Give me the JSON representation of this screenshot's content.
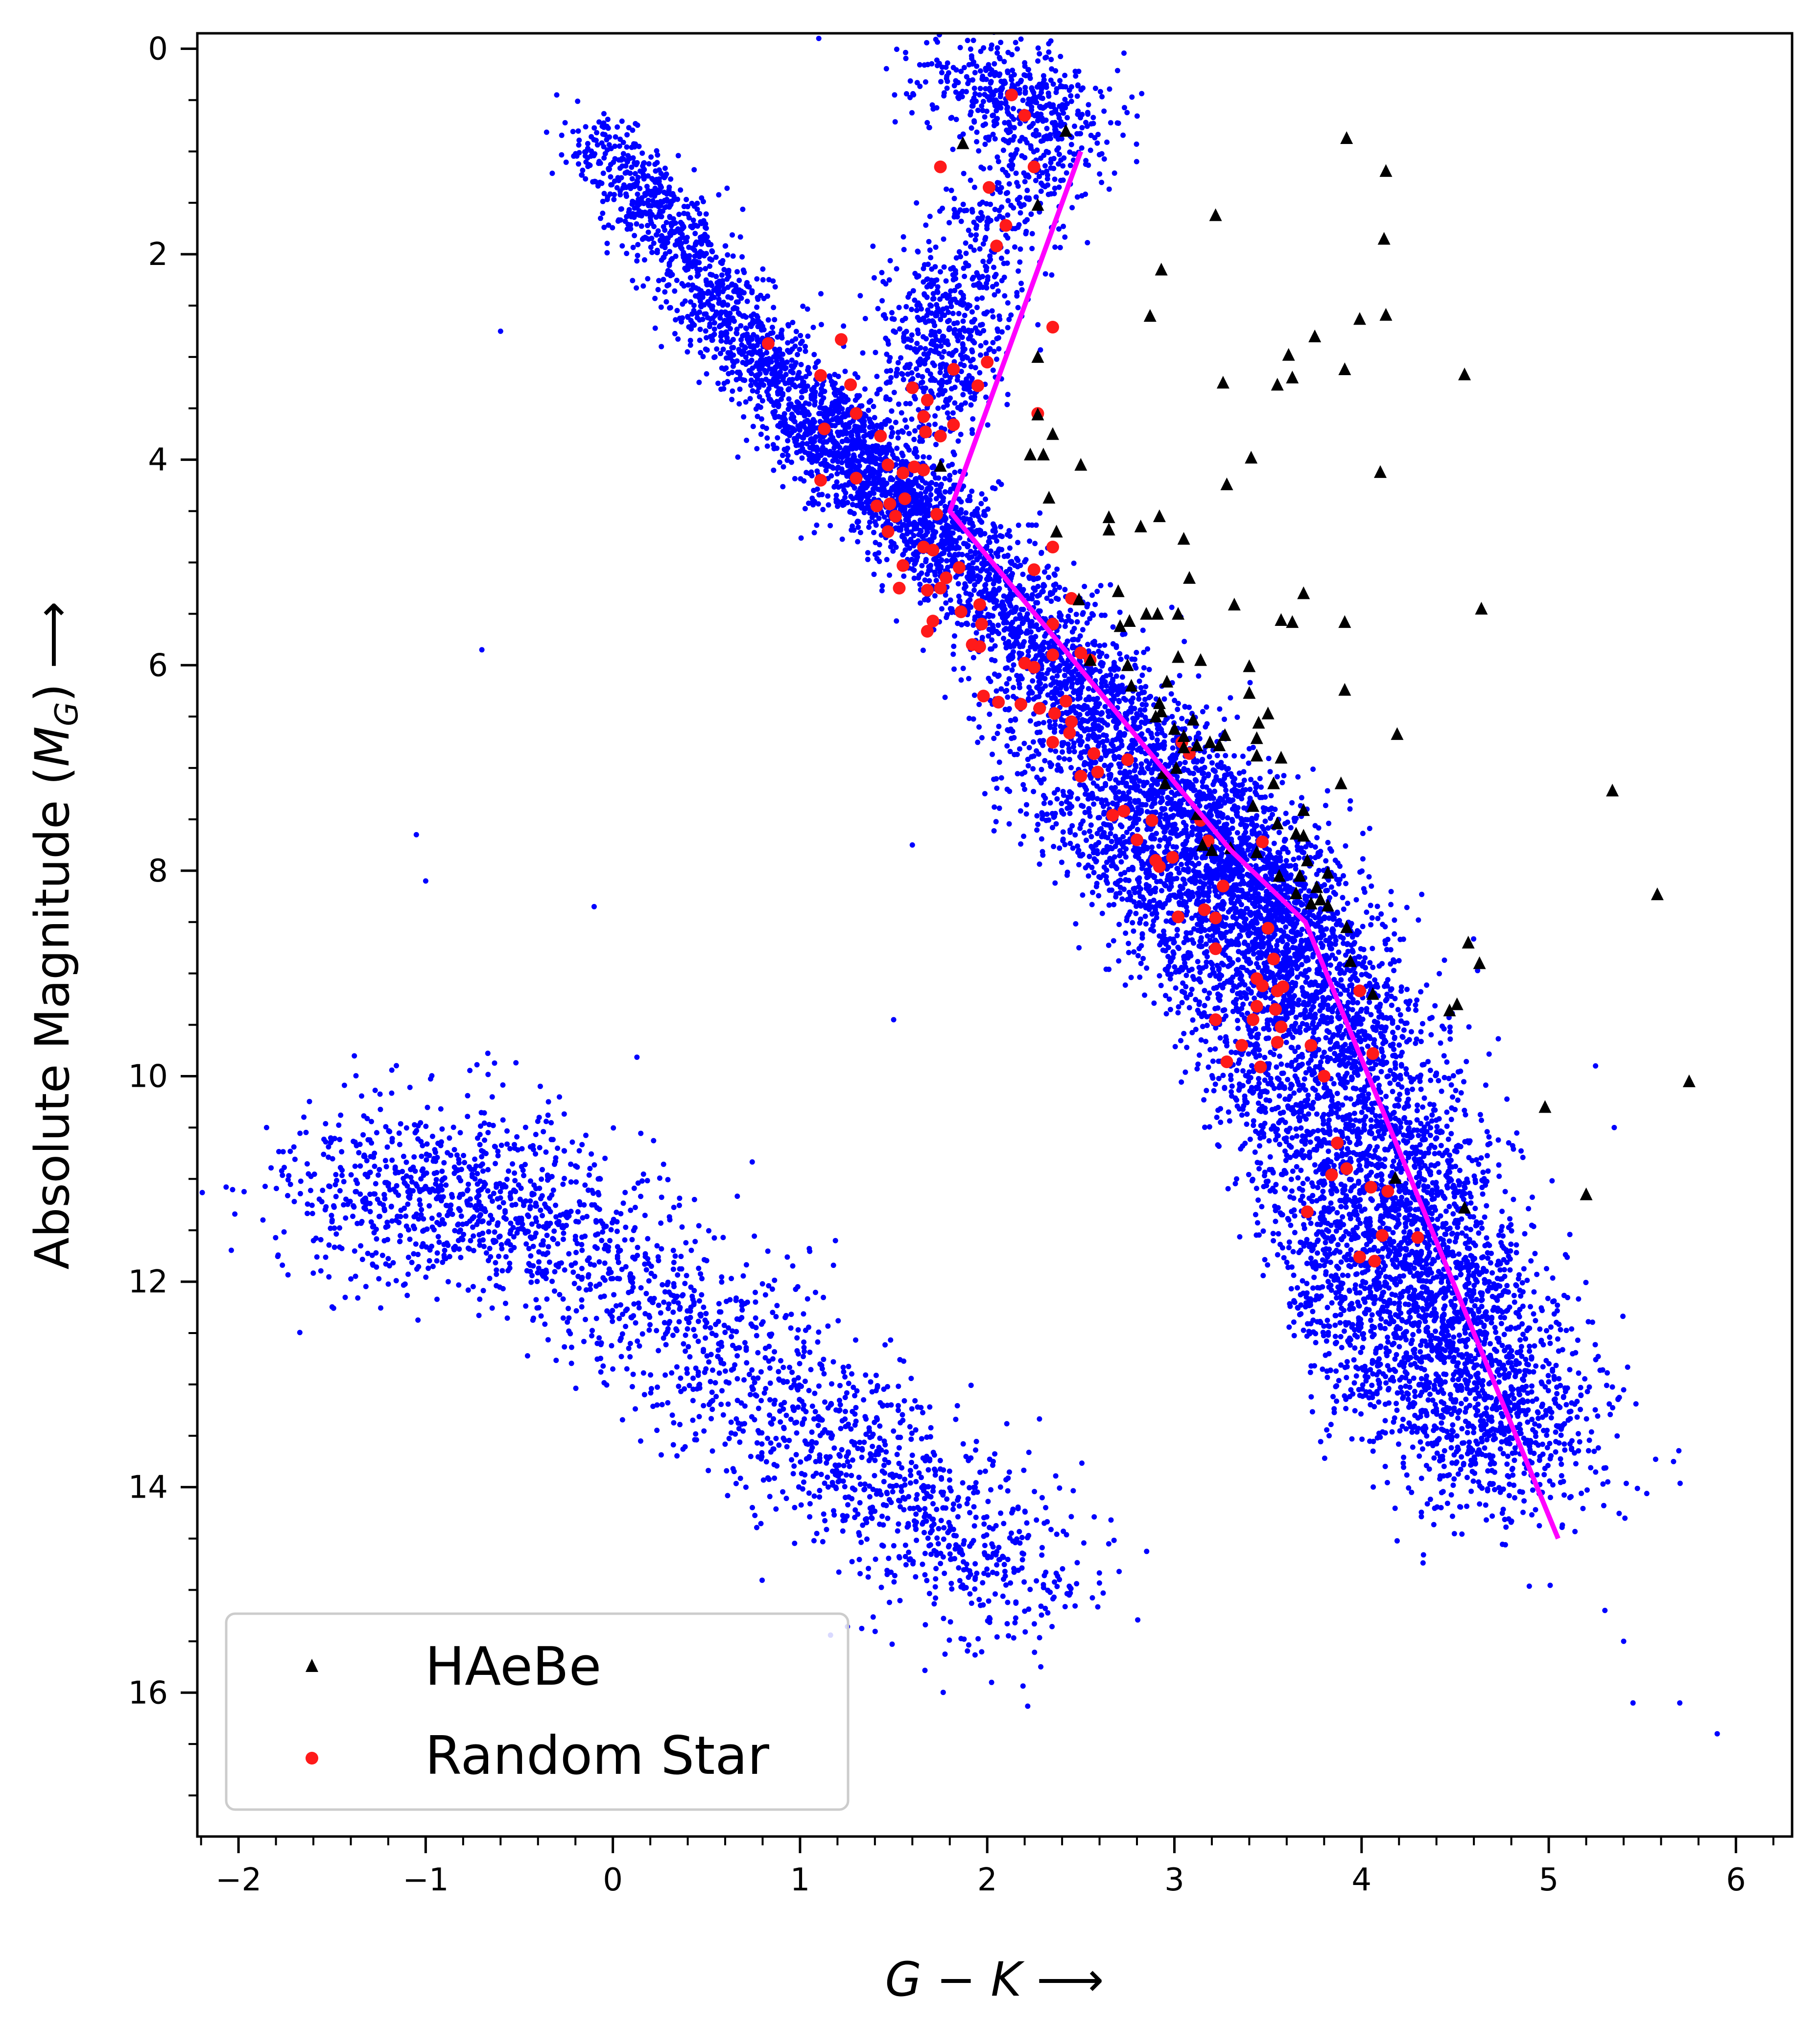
{
  "chart_data": {
    "type": "scatter",
    "title": "",
    "xlabel": "G − K ⟶",
    "xlabel_main": "G",
    "xlabel_minus": " − ",
    "xlabel_k": "K",
    "xlabel_arrow": " ⟶",
    "ylabel_pre": "Absolute Magnitude (",
    "ylabel_m": "M",
    "ylabel_sub": "G",
    "ylabel_post": ") ⟶",
    "ylabel": "Absolute Magnitude (M_G) ⟶",
    "xlim": [
      -2.22,
      6.3
    ],
    "ylim": [
      17.4,
      -0.15
    ],
    "y_inverted": true,
    "grid": false,
    "legend_position": "lower-left",
    "x_ticks": [
      -2,
      -1,
      0,
      1,
      2,
      3,
      4,
      5,
      6
    ],
    "x_tick_labels": [
      "−2",
      "−1",
      "0",
      "1",
      "2",
      "3",
      "4",
      "5",
      "6"
    ],
    "y_ticks": [
      0,
      2,
      4,
      6,
      8,
      10,
      12,
      14,
      16
    ],
    "y_tick_labels": [
      "0",
      "2",
      "4",
      "6",
      "8",
      "10",
      "12",
      "14",
      "16"
    ],
    "colors": {
      "background_stars": "#0000ff",
      "haebe": "#000000",
      "random_star": "#ff1a1a",
      "boundary_line": "#ff00ff"
    },
    "legend": [
      {
        "label": "HAeBe",
        "marker": "triangle",
        "color": "#000000"
      },
      {
        "label": "Random Star",
        "marker": "circle",
        "color": "#ff1a1a"
      }
    ],
    "boundary_line": {
      "name": "",
      "points": [
        [
          2.5,
          1.0
        ],
        [
          1.8,
          4.5
        ],
        [
          3.3,
          7.8
        ],
        [
          3.7,
          8.5
        ],
        [
          5.05,
          14.5
        ]
      ]
    },
    "background_population": {
      "description_key": "field stars (dense blue scatter)",
      "main_sequence_ridge": [
        [
          -0.1,
          0.8
        ],
        [
          1.0,
          3.5
        ],
        [
          1.8,
          4.8
        ],
        [
          3.0,
          7.2
        ],
        [
          3.7,
          8.8
        ],
        [
          4.3,
          11.5
        ],
        [
          4.8,
          13.8
        ]
      ],
      "red_clump": [
        [
          1.8,
          0.3
        ],
        [
          2.4,
          0.6
        ],
        [
          1.8,
          2.5
        ],
        [
          1.7,
          3.5
        ]
      ],
      "white_dwarf_sequence": [
        [
          -1.5,
          11.0
        ],
        [
          -0.4,
          11.3
        ],
        [
          1.0,
          13.3
        ],
        [
          2.2,
          15.0
        ]
      ],
      "outliers": [
        [
          -0.3,
          0.45
        ],
        [
          -0.6,
          2.75
        ],
        [
          -0.7,
          5.85
        ],
        [
          -1.05,
          7.65
        ],
        [
          -1.0,
          8.1
        ],
        [
          -0.1,
          8.35
        ],
        [
          1.6,
          7.75
        ],
        [
          1.5,
          9.45
        ],
        [
          5.25,
          9.9
        ],
        [
          5.35,
          10.5
        ],
        [
          5.3,
          15.2
        ],
        [
          5.4,
          15.5
        ],
        [
          5.45,
          16.1
        ],
        [
          5.7,
          16.1
        ],
        [
          5.9,
          16.4
        ],
        [
          1.1,
          -0.1
        ],
        [
          -1.85,
          10.5
        ]
      ]
    },
    "series": [
      {
        "name": "HAeBe",
        "marker": "triangle",
        "points": [
          [
            2.42,
            0.8
          ],
          [
            1.87,
            0.92
          ],
          [
            3.92,
            0.87
          ],
          [
            4.13,
            1.19
          ],
          [
            2.27,
            1.52
          ],
          [
            3.22,
            1.62
          ],
          [
            4.12,
            1.85
          ],
          [
            2.93,
            2.15
          ],
          [
            2.87,
            2.6
          ],
          [
            4.13,
            2.59
          ],
          [
            3.99,
            2.63
          ],
          [
            3.75,
            2.8
          ],
          [
            2.27,
            3.0
          ],
          [
            3.61,
            2.98
          ],
          [
            3.91,
            3.12
          ],
          [
            4.55,
            3.17
          ],
          [
            3.63,
            3.2
          ],
          [
            3.26,
            3.25
          ],
          [
            3.55,
            3.27
          ],
          [
            2.27,
            3.56
          ],
          [
            2.35,
            3.75
          ],
          [
            1.75,
            4.06
          ],
          [
            2.23,
            3.95
          ],
          [
            2.3,
            3.95
          ],
          [
            2.5,
            4.05
          ],
          [
            3.41,
            3.98
          ],
          [
            4.1,
            4.12
          ],
          [
            3.28,
            4.24
          ],
          [
            2.33,
            4.37
          ],
          [
            2.37,
            4.7
          ],
          [
            2.65,
            4.56
          ],
          [
            2.82,
            4.65
          ],
          [
            2.92,
            4.55
          ],
          [
            3.05,
            4.77
          ],
          [
            2.65,
            4.68
          ],
          [
            3.08,
            5.15
          ],
          [
            2.7,
            5.28
          ],
          [
            2.49,
            5.36
          ],
          [
            2.85,
            5.5
          ],
          [
            2.91,
            5.5
          ],
          [
            2.71,
            5.62
          ],
          [
            2.76,
            5.57
          ],
          [
            3.02,
            5.5
          ],
          [
            3.32,
            5.41
          ],
          [
            3.57,
            5.56
          ],
          [
            3.63,
            5.58
          ],
          [
            3.69,
            5.3
          ],
          [
            3.91,
            5.58
          ],
          [
            4.64,
            5.45
          ],
          [
            2.55,
            5.95
          ],
          [
            2.75,
            6.0
          ],
          [
            2.96,
            6.16
          ],
          [
            3.02,
            5.92
          ],
          [
            3.14,
            5.95
          ],
          [
            3.4,
            6.01
          ],
          [
            2.77,
            6.2
          ],
          [
            2.92,
            6.37
          ],
          [
            2.93,
            6.45
          ],
          [
            2.9,
            6.5
          ],
          [
            3.0,
            6.62
          ],
          [
            3.05,
            6.69
          ],
          [
            3.1,
            6.53
          ],
          [
            3.4,
            6.27
          ],
          [
            3.5,
            6.47
          ],
          [
            3.91,
            6.24
          ],
          [
            3.05,
            6.8
          ],
          [
            3.12,
            6.78
          ],
          [
            3.19,
            6.75
          ],
          [
            3.24,
            6.78
          ],
          [
            3.27,
            6.68
          ],
          [
            3.45,
            6.56
          ],
          [
            3.44,
            6.71
          ],
          [
            4.19,
            6.67
          ],
          [
            2.94,
            7.05
          ],
          [
            3.01,
            7.0
          ],
          [
            3.44,
            6.88
          ],
          [
            3.57,
            6.9
          ],
          [
            3.53,
            7.15
          ],
          [
            3.89,
            7.15
          ],
          [
            2.95,
            7.15
          ],
          [
            3.42,
            7.37
          ],
          [
            3.12,
            7.45
          ],
          [
            3.69,
            7.41
          ],
          [
            3.55,
            7.54
          ],
          [
            3.65,
            7.64
          ],
          [
            3.15,
            7.75
          ],
          [
            3.2,
            7.8
          ],
          [
            3.3,
            7.78
          ],
          [
            3.44,
            7.82
          ],
          [
            3.69,
            7.66
          ],
          [
            3.71,
            7.9
          ],
          [
            3.56,
            8.05
          ],
          [
            3.67,
            8.05
          ],
          [
            3.76,
            8.16
          ],
          [
            3.82,
            8.02
          ],
          [
            3.65,
            8.22
          ],
          [
            3.73,
            8.32
          ],
          [
            3.78,
            8.28
          ],
          [
            3.82,
            8.34
          ],
          [
            3.92,
            8.55
          ],
          [
            3.94,
            8.88
          ],
          [
            4.06,
            9.2
          ],
          [
            4.57,
            8.7
          ],
          [
            4.63,
            8.9
          ],
          [
            4.47,
            9.36
          ],
          [
            4.51,
            9.3
          ],
          [
            5.34,
            7.22
          ],
          [
            5.58,
            8.23
          ],
          [
            5.75,
            10.05
          ],
          [
            4.98,
            10.3
          ],
          [
            5.2,
            11.15
          ],
          [
            4.18,
            10.99
          ],
          [
            4.55,
            11.28
          ]
        ]
      },
      {
        "name": "Random Star",
        "marker": "circle",
        "points": [
          [
            2.13,
            0.45
          ],
          [
            2.2,
            0.65
          ],
          [
            1.75,
            1.15
          ],
          [
            2.25,
            1.15
          ],
          [
            2.01,
            1.35
          ],
          [
            2.1,
            1.72
          ],
          [
            2.05,
            1.92
          ],
          [
            0.83,
            2.87
          ],
          [
            1.22,
            2.83
          ],
          [
            2.35,
            2.71
          ],
          [
            1.11,
            3.18
          ],
          [
            1.27,
            3.27
          ],
          [
            1.6,
            3.3
          ],
          [
            1.68,
            3.42
          ],
          [
            1.82,
            3.12
          ],
          [
            2.0,
            3.05
          ],
          [
            1.95,
            3.28
          ],
          [
            1.3,
            3.55
          ],
          [
            1.66,
            3.58
          ],
          [
            1.13,
            3.7
          ],
          [
            1.43,
            3.77
          ],
          [
            1.67,
            3.73
          ],
          [
            1.75,
            3.77
          ],
          [
            1.82,
            3.66
          ],
          [
            2.27,
            3.55
          ],
          [
            1.11,
            4.2
          ],
          [
            1.3,
            4.18
          ],
          [
            1.47,
            4.05
          ],
          [
            1.55,
            4.13
          ],
          [
            1.61,
            4.07
          ],
          [
            1.66,
            4.1
          ],
          [
            1.41,
            4.45
          ],
          [
            1.48,
            4.43
          ],
          [
            1.56,
            4.38
          ],
          [
            1.51,
            4.55
          ],
          [
            1.47,
            4.7
          ],
          [
            1.73,
            4.53
          ],
          [
            2.35,
            4.85
          ],
          [
            1.55,
            5.03
          ],
          [
            1.66,
            4.85
          ],
          [
            1.71,
            4.88
          ],
          [
            1.85,
            5.05
          ],
          [
            1.78,
            5.15
          ],
          [
            1.53,
            5.25
          ],
          [
            2.25,
            5.07
          ],
          [
            1.68,
            5.27
          ],
          [
            1.75,
            5.25
          ],
          [
            2.45,
            5.35
          ],
          [
            1.96,
            5.41
          ],
          [
            1.71,
            5.57
          ],
          [
            1.86,
            5.48
          ],
          [
            1.68,
            5.67
          ],
          [
            1.97,
            5.6
          ],
          [
            1.92,
            5.8
          ],
          [
            2.35,
            5.6
          ],
          [
            2.5,
            5.88
          ],
          [
            2.55,
            5.95
          ],
          [
            2.35,
            5.9
          ],
          [
            1.96,
            5.82
          ],
          [
            2.2,
            5.98
          ],
          [
            2.25,
            6.02
          ],
          [
            1.98,
            6.3
          ],
          [
            2.06,
            6.36
          ],
          [
            2.18,
            6.38
          ],
          [
            2.28,
            6.42
          ],
          [
            2.36,
            6.47
          ],
          [
            2.42,
            6.35
          ],
          [
            2.45,
            6.55
          ],
          [
            2.35,
            6.75
          ],
          [
            2.44,
            6.66
          ],
          [
            2.57,
            6.86
          ],
          [
            2.75,
            6.92
          ],
          [
            2.5,
            7.08
          ],
          [
            2.59,
            7.04
          ],
          [
            3.04,
            6.75
          ],
          [
            3.08,
            6.86
          ],
          [
            2.67,
            7.46
          ],
          [
            2.73,
            7.42
          ],
          [
            2.88,
            7.51
          ],
          [
            3.14,
            7.51
          ],
          [
            2.8,
            7.7
          ],
          [
            2.9,
            7.9
          ],
          [
            2.92,
            7.96
          ],
          [
            2.99,
            7.87
          ],
          [
            3.18,
            7.71
          ],
          [
            3.47,
            7.72
          ],
          [
            3.02,
            8.45
          ],
          [
            3.16,
            8.38
          ],
          [
            3.22,
            8.46
          ],
          [
            3.26,
            8.15
          ],
          [
            3.5,
            8.56
          ],
          [
            3.22,
            8.76
          ],
          [
            3.53,
            8.86
          ],
          [
            3.44,
            9.05
          ],
          [
            3.47,
            9.12
          ],
          [
            3.55,
            9.17
          ],
          [
            3.58,
            9.13
          ],
          [
            3.44,
            9.32
          ],
          [
            3.54,
            9.35
          ],
          [
            3.57,
            9.52
          ],
          [
            3.99,
            9.17
          ],
          [
            3.22,
            9.45
          ],
          [
            3.42,
            9.45
          ],
          [
            3.36,
            9.7
          ],
          [
            3.55,
            9.67
          ],
          [
            3.73,
            9.7
          ],
          [
            3.28,
            9.86
          ],
          [
            3.46,
            9.91
          ],
          [
            3.8,
            10.0
          ],
          [
            4.06,
            9.78
          ],
          [
            3.87,
            10.65
          ],
          [
            3.92,
            10.9
          ],
          [
            3.84,
            10.96
          ],
          [
            3.71,
            11.32
          ],
          [
            4.05,
            11.08
          ],
          [
            4.14,
            11.12
          ],
          [
            4.11,
            11.55
          ],
          [
            4.3,
            11.57
          ],
          [
            3.99,
            11.76
          ],
          [
            4.07,
            11.8
          ]
        ]
      }
    ]
  }
}
